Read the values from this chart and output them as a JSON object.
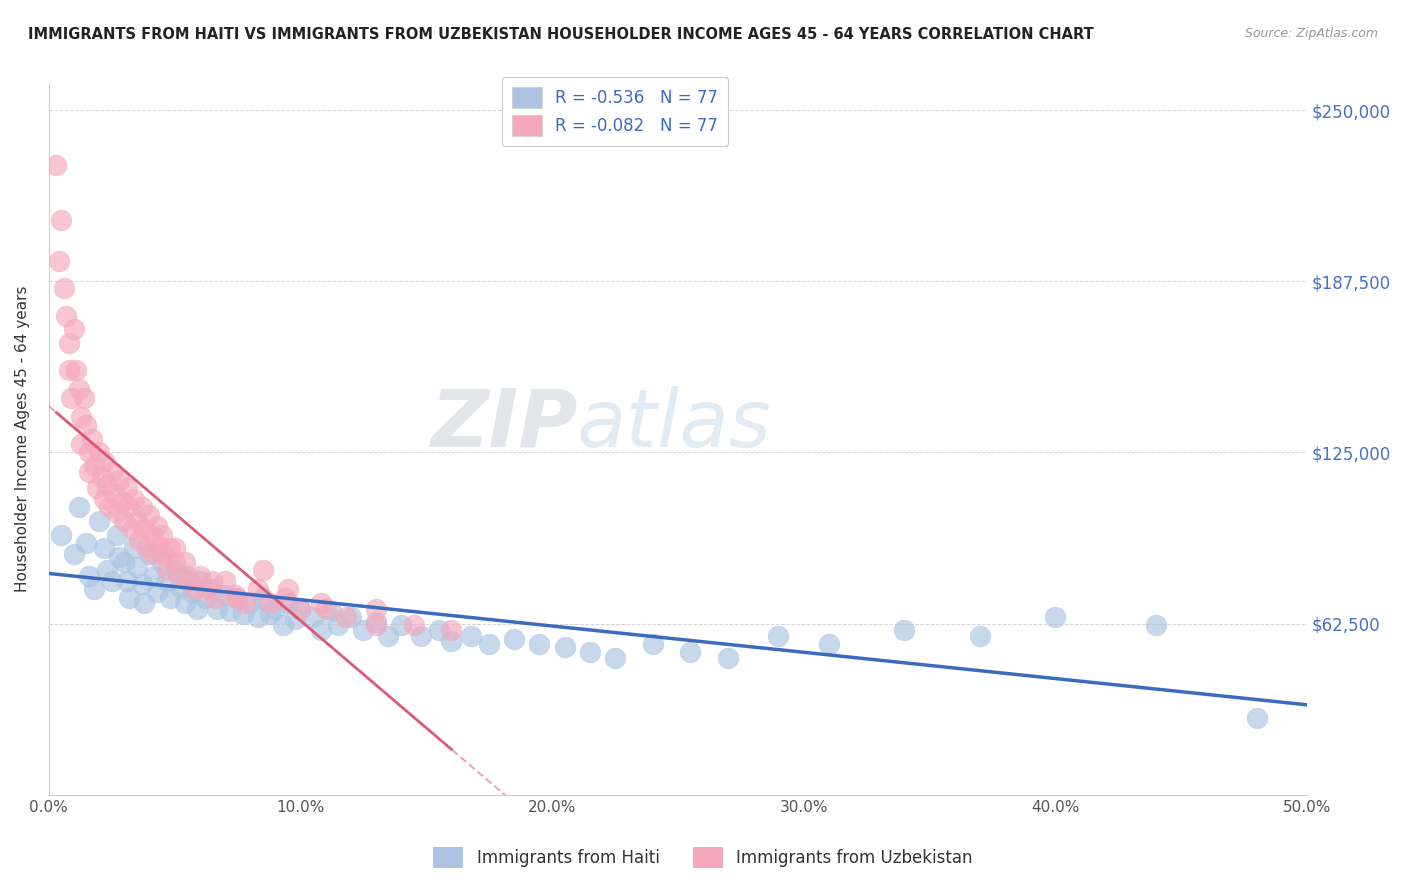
{
  "title": "IMMIGRANTS FROM HAITI VS IMMIGRANTS FROM UZBEKISTAN HOUSEHOLDER INCOME AGES 45 - 64 YEARS CORRELATION CHART",
  "source": "Source: ZipAtlas.com",
  "ylabel": "Householder Income Ages 45 - 64 years",
  "xlabel_ticks": [
    "0.0%",
    "10.0%",
    "20.0%",
    "30.0%",
    "40.0%",
    "50.0%"
  ],
  "xlabel_vals": [
    0.0,
    0.1,
    0.2,
    0.3,
    0.4,
    0.5
  ],
  "ytick_labels": [
    "$62,500",
    "$125,000",
    "$187,500",
    "$250,000"
  ],
  "ytick_vals": [
    62500,
    125000,
    187500,
    250000
  ],
  "xlim": [
    0.0,
    0.5
  ],
  "ylim": [
    0,
    260000
  ],
  "legend1_label": "R = -0.536   N = 77",
  "legend2_label": "R = -0.082   N = 77",
  "haiti_color": "#aac4e2",
  "uzbekistan_color": "#f5a8bc",
  "haiti_line_color": "#3b6abf",
  "uzbekistan_line_color": "#d95070",
  "watermark_zip": "ZIP",
  "watermark_atlas": "atlas",
  "bottom_legend1": "Immigrants from Haiti",
  "bottom_legend2": "Immigrants from Uzbekistan",
  "haiti_scatter_x": [
    0.005,
    0.01,
    0.012,
    0.015,
    0.016,
    0.018,
    0.02,
    0.022,
    0.023,
    0.025,
    0.027,
    0.028,
    0.03,
    0.031,
    0.032,
    0.034,
    0.035,
    0.037,
    0.038,
    0.04,
    0.042,
    0.043,
    0.045,
    0.047,
    0.048,
    0.05,
    0.052,
    0.054,
    0.055,
    0.057,
    0.059,
    0.06,
    0.062,
    0.065,
    0.067,
    0.07,
    0.072,
    0.075,
    0.077,
    0.08,
    0.083,
    0.085,
    0.088,
    0.09,
    0.093,
    0.095,
    0.098,
    0.1,
    0.105,
    0.108,
    0.112,
    0.115,
    0.12,
    0.125,
    0.13,
    0.135,
    0.14,
    0.148,
    0.155,
    0.16,
    0.168,
    0.175,
    0.185,
    0.195,
    0.205,
    0.215,
    0.225,
    0.24,
    0.255,
    0.27,
    0.29,
    0.31,
    0.34,
    0.37,
    0.4,
    0.44,
    0.48
  ],
  "haiti_scatter_y": [
    95000,
    88000,
    105000,
    92000,
    80000,
    75000,
    100000,
    90000,
    82000,
    78000,
    95000,
    87000,
    85000,
    78000,
    72000,
    90000,
    83000,
    77000,
    70000,
    88000,
    80000,
    74000,
    85000,
    78000,
    72000,
    82000,
    76000,
    70000,
    80000,
    74000,
    68000,
    78000,
    72000,
    75000,
    68000,
    73000,
    67000,
    72000,
    66000,
    70000,
    65000,
    72000,
    66000,
    68000,
    62000,
    70000,
    64000,
    68000,
    65000,
    60000,
    67000,
    62000,
    65000,
    60000,
    63000,
    58000,
    62000,
    58000,
    60000,
    56000,
    58000,
    55000,
    57000,
    55000,
    54000,
    52000,
    50000,
    55000,
    52000,
    50000,
    58000,
    55000,
    60000,
    58000,
    65000,
    62000,
    28000
  ],
  "uzbek_scatter_x": [
    0.003,
    0.004,
    0.005,
    0.006,
    0.007,
    0.008,
    0.008,
    0.009,
    0.01,
    0.011,
    0.012,
    0.013,
    0.013,
    0.014,
    0.015,
    0.016,
    0.016,
    0.017,
    0.018,
    0.019,
    0.02,
    0.021,
    0.022,
    0.022,
    0.023,
    0.024,
    0.025,
    0.026,
    0.027,
    0.028,
    0.029,
    0.03,
    0.031,
    0.032,
    0.033,
    0.034,
    0.035,
    0.036,
    0.037,
    0.038,
    0.039,
    0.04,
    0.041,
    0.042,
    0.043,
    0.044,
    0.045,
    0.046,
    0.047,
    0.048,
    0.05,
    0.052,
    0.054,
    0.056,
    0.058,
    0.06,
    0.063,
    0.066,
    0.07,
    0.074,
    0.078,
    0.083,
    0.088,
    0.094,
    0.1,
    0.108,
    0.118,
    0.13,
    0.145,
    0.16,
    0.05,
    0.065,
    0.075,
    0.085,
    0.095,
    0.11,
    0.13
  ],
  "uzbek_scatter_y": [
    230000,
    195000,
    210000,
    185000,
    175000,
    165000,
    155000,
    145000,
    170000,
    155000,
    148000,
    138000,
    128000,
    145000,
    135000,
    125000,
    118000,
    130000,
    120000,
    112000,
    125000,
    116000,
    108000,
    122000,
    113000,
    105000,
    118000,
    110000,
    103000,
    115000,
    107000,
    100000,
    112000,
    105000,
    97000,
    108000,
    100000,
    93000,
    105000,
    97000,
    90000,
    102000,
    95000,
    88000,
    98000,
    91000,
    95000,
    88000,
    82000,
    90000,
    85000,
    80000,
    85000,
    78000,
    75000,
    80000,
    75000,
    72000,
    78000,
    73000,
    70000,
    75000,
    70000,
    72000,
    68000,
    70000,
    65000,
    68000,
    62000,
    60000,
    90000,
    78000,
    72000,
    82000,
    75000,
    68000,
    62000
  ]
}
